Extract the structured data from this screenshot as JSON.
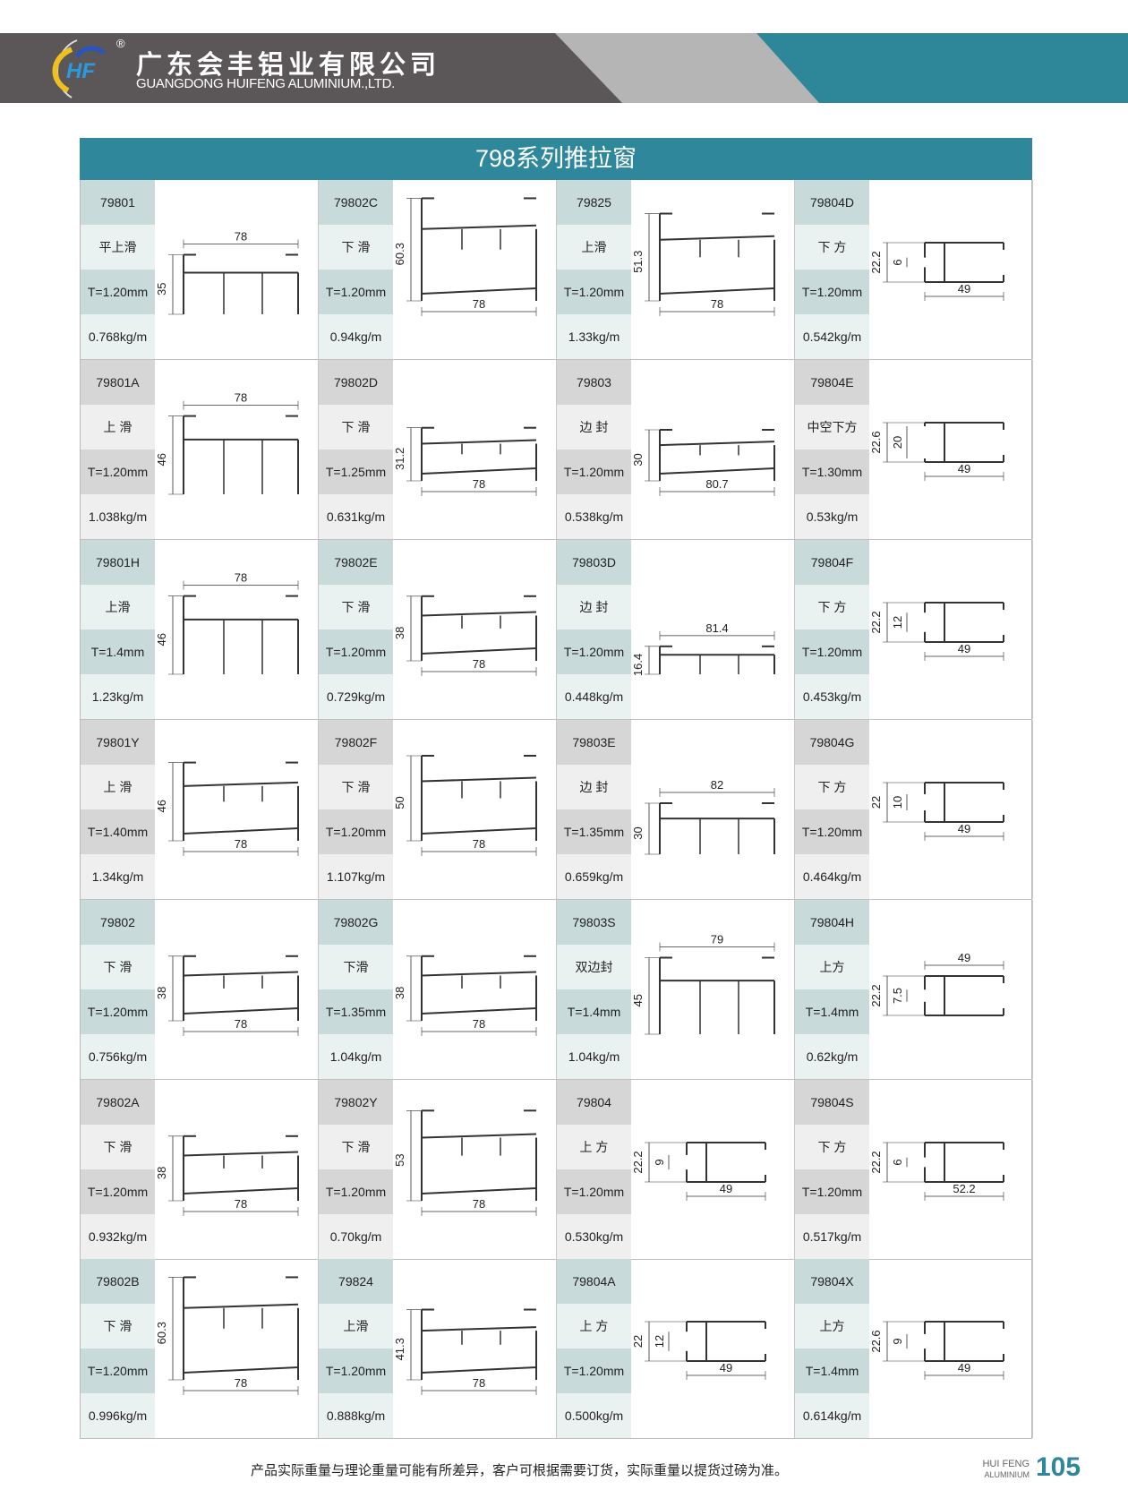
{
  "header": {
    "company_cn": "广东会丰铝业有限公司",
    "company_en": "GUANGDONG HUIFENG ALUMINIUM.,LTD.",
    "logo_text": "HF",
    "registered": "®"
  },
  "title": "798系列推拉窗",
  "colors": {
    "teal": "#2e879a",
    "dark": "#5b5758",
    "gray": "#b5b5b5",
    "label_teal": "#c8dada",
    "label_gray": "#d6d6d6"
  },
  "rows": [
    {
      "cells": [
        {
          "code": "79801",
          "name": "平上滑",
          "thickness": "T=1.20mm",
          "weight": "0.768kg/m",
          "type": "wide-top",
          "h": "35",
          "w": "78"
        },
        {
          "code": "79802C",
          "name": "下 滑",
          "thickness": "T=1.20mm",
          "weight": "0.94kg/m",
          "type": "wide-bottom",
          "h": "60.3",
          "w": "78"
        },
        {
          "code": "79825",
          "name": "上滑",
          "thickness": "T=1.20mm",
          "weight": "1.33kg/m",
          "type": "wide-bottom",
          "h": "51.3",
          "w": "78"
        },
        {
          "code": "79804D",
          "name": "下 方",
          "thickness": "T=1.20mm",
          "weight": "0.542kg/m",
          "type": "small",
          "h": "22.2",
          "h2": "6",
          "w": "49"
        }
      ]
    },
    {
      "cells": [
        {
          "code": "79801A",
          "name": "上 滑",
          "thickness": "T=1.20mm",
          "weight": "1.038kg/m",
          "type": "wide-top",
          "h": "46",
          "w": "78"
        },
        {
          "code": "79802D",
          "name": "下 滑",
          "thickness": "T=1.25mm",
          "weight": "0.631kg/m",
          "type": "wide-bottom",
          "h": "31.2",
          "w": "78"
        },
        {
          "code": "79803",
          "name": "边 封",
          "thickness": "T=1.20mm",
          "weight": "0.538kg/m",
          "type": "wide-bottom",
          "h": "30",
          "w": "80.7"
        },
        {
          "code": "79804E",
          "name": "中空下方",
          "thickness": "T=1.30mm",
          "weight": "0.53kg/m",
          "type": "small",
          "h": "22.6",
          "h2": "20",
          "w": "49"
        }
      ]
    },
    {
      "cells": [
        {
          "code": "79801H",
          "name": "上滑",
          "thickness": "T=1.4mm",
          "weight": "1.23kg/m",
          "type": "wide-top",
          "h": "46",
          "w": "78"
        },
        {
          "code": "79802E",
          "name": "下 滑",
          "thickness": "T=1.20mm",
          "weight": "0.729kg/m",
          "type": "wide-bottom",
          "h": "38",
          "w": "78"
        },
        {
          "code": "79803D",
          "name": "边 封",
          "thickness": "T=1.20mm",
          "weight": "0.448kg/m",
          "type": "wide-top",
          "h": "16.4",
          "w": "81.4"
        },
        {
          "code": "79804F",
          "name": "下 方",
          "thickness": "T=1.20mm",
          "weight": "0.453kg/m",
          "type": "small",
          "h": "22.2",
          "h2": "12",
          "w": "49"
        }
      ]
    },
    {
      "cells": [
        {
          "code": "79801Y",
          "name": "上 滑",
          "thickness": "T=1.40mm",
          "weight": "1.34kg/m",
          "type": "wide-bottom",
          "h": "46",
          "w": "78"
        },
        {
          "code": "79802F",
          "name": "下 滑",
          "thickness": "T=1.20mm",
          "weight": "1.107kg/m",
          "type": "wide-bottom",
          "h": "50",
          "w": "78"
        },
        {
          "code": "79803E",
          "name": "边 封",
          "thickness": "T=1.35mm",
          "weight": "0.659kg/m",
          "type": "wide-top",
          "h": "30",
          "w": "82"
        },
        {
          "code": "79804G",
          "name": "下 方",
          "thickness": "T=1.20mm",
          "weight": "0.464kg/m",
          "type": "small",
          "h": "22",
          "h2": "10",
          "w": "49"
        }
      ]
    },
    {
      "cells": [
        {
          "code": "79802",
          "name": "下 滑",
          "thickness": "T=1.20mm",
          "weight": "0.756kg/m",
          "type": "wide-bottom",
          "h": "38",
          "w": "78"
        },
        {
          "code": "79802G",
          "name": "下滑",
          "thickness": "T=1.35mm",
          "weight": "1.04kg/m",
          "type": "wide-bottom",
          "h": "38",
          "w": "78"
        },
        {
          "code": "79803S",
          "name": "双边封",
          "thickness": "T=1.4mm",
          "weight": "1.04kg/m",
          "type": "wide-top",
          "h": "45",
          "w": "79"
        },
        {
          "code": "79804H",
          "name": "上方",
          "thickness": "T=1.4mm",
          "weight": "0.62kg/m",
          "type": "small-top",
          "h": "22.2",
          "h2": "7.5",
          "w": "49"
        }
      ]
    },
    {
      "cells": [
        {
          "code": "79802A",
          "name": "下 滑",
          "thickness": "T=1.20mm",
          "weight": "0.932kg/m",
          "type": "wide-bottom",
          "h": "38",
          "w": "78"
        },
        {
          "code": "79802Y",
          "name": "下 滑",
          "thickness": "T=1.20mm",
          "weight": "0.70kg/m",
          "type": "wide-bottom",
          "h": "53",
          "w": "78"
        },
        {
          "code": "79804",
          "name": "上 方",
          "thickness": "T=1.20mm",
          "weight": "0.530kg/m",
          "type": "small",
          "h": "22.2",
          "h2": "9",
          "w": "49"
        },
        {
          "code": "79804S",
          "name": "下 方",
          "thickness": "T=1.20mm",
          "weight": "0.517kg/m",
          "type": "small",
          "h": "22.2",
          "h2": "6",
          "w": "52.2"
        }
      ]
    },
    {
      "cells": [
        {
          "code": "79802B",
          "name": "下 滑",
          "thickness": "T=1.20mm",
          "weight": "0.996kg/m",
          "type": "wide-bottom",
          "h": "60.3",
          "w": "78"
        },
        {
          "code": "79824",
          "name": "上滑",
          "thickness": "T=1.20mm",
          "weight": "0.888kg/m",
          "type": "wide-bottom",
          "h": "41.3",
          "w": "78"
        },
        {
          "code": "79804A",
          "name": "上 方",
          "thickness": "T=1.20mm",
          "weight": "0.500kg/m",
          "type": "small",
          "h": "22",
          "h2": "12",
          "w": "49"
        },
        {
          "code": "79804X",
          "name": "上方",
          "thickness": "T=1.4mm",
          "weight": "0.614kg/m",
          "type": "small",
          "h": "22.6",
          "h2": "9",
          "w": "49"
        }
      ]
    }
  ],
  "footer": {
    "note": "产品实际重量与理论重量可能有所差异，客户可根据需要订货，实际重量以提货过磅为准。",
    "brand_line1": "HUI FENG",
    "brand_line2": "ALUMINIUM",
    "page_number": "105"
  }
}
